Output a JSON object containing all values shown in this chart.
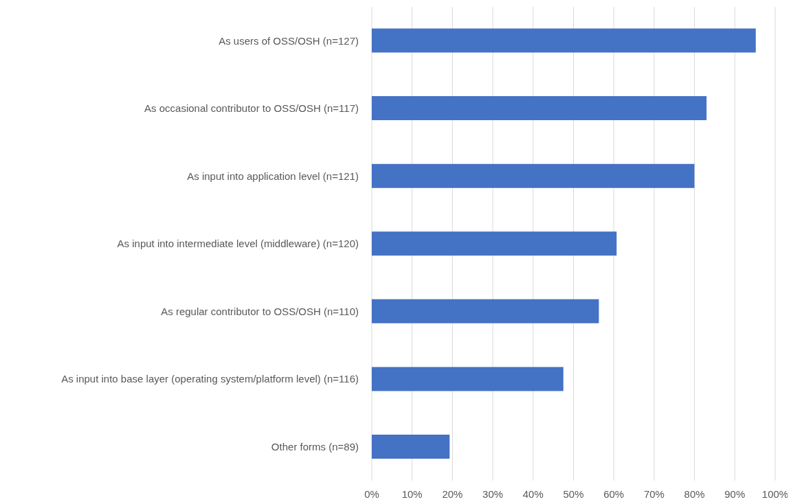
{
  "chart_data": {
    "type": "bar",
    "orientation": "horizontal",
    "categories": [
      "As users of OSS/OSH (n=127)",
      "As occasional contributor to OSS/OSH (n=117)",
      "As input into application level (n=121)",
      "As input into intermediate level (middleware) (n=120)",
      "As regular contributor to OSS/OSH (n=110)",
      "As input into base layer (operating system/platform level) (n=116)",
      "Other forms (n=89)"
    ],
    "values": [
      95.2,
      83.0,
      80.0,
      60.7,
      56.3,
      47.5,
      19.3
    ],
    "color": "#4472c4",
    "xlim": [
      0,
      100
    ],
    "xticks": [
      {
        "value": 0,
        "label": "0%"
      },
      {
        "value": 10,
        "label": "10%"
      },
      {
        "value": 20,
        "label": "20%"
      },
      {
        "value": 30,
        "label": "30%"
      },
      {
        "value": 40,
        "label": "40%"
      },
      {
        "value": 50,
        "label": "50%"
      },
      {
        "value": 60,
        "label": "60%"
      },
      {
        "value": 70,
        "label": "70%"
      },
      {
        "value": 80,
        "label": "80%"
      },
      {
        "value": 90,
        "label": "90%"
      },
      {
        "value": 100,
        "label": "100%"
      }
    ],
    "grid": "x"
  }
}
